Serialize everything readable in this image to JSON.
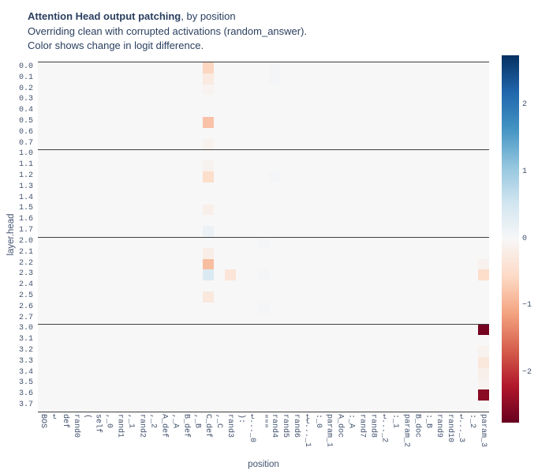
{
  "header": {
    "title_bold": "Attention Head output patching",
    "title_rest": ", by position",
    "subtitle1": "Overriding clean with corrupted activations (random_answer).",
    "subtitle2": "Color shows change in logit difference."
  },
  "chart_data": {
    "type": "heatmap",
    "title": "Attention Head output patching, by position",
    "xlabel": "position",
    "ylabel": "layer.head",
    "x_categories": [
      "BOS",
      "↵",
      "def",
      "rand0",
      "(",
      "self",
      ",_0",
      "rand1",
      ",_1",
      "rand2",
      ",_2",
      "A_def",
      ",_A",
      "B_def",
      ",_B",
      "C_def",
      ",_C",
      "rand3",
      "):",
      "↵..._0",
      "\"\"\"",
      "rand4",
      "rand5",
      "rand6",
      "↵↵..._1",
      ":_0",
      "param_1",
      "A_doc",
      ":_A",
      "rand7",
      "rand8",
      "↵..._2",
      ":_1",
      "param_2",
      "B_doc",
      ":_B",
      "rand9",
      "rand10",
      "↵..._3",
      ":_2",
      "param_3"
    ],
    "y_categories": [
      "0.0",
      "0.1",
      "0.2",
      "0.3",
      "0.4",
      "0.5",
      "0.6",
      "0.7",
      "1.0",
      "1.1",
      "1.2",
      "1.3",
      "1.4",
      "1.5",
      "1.6",
      "1.7",
      "2.0",
      "2.1",
      "2.2",
      "2.3",
      "2.4",
      "2.5",
      "2.6",
      "2.7",
      "3.0",
      "3.1",
      "3.2",
      "3.3",
      "3.4",
      "3.5",
      "3.6",
      "3.7"
    ],
    "colorscale": {
      "name": "RdBu",
      "zero_color_hex": "#f7f7f7",
      "positive_end_hex": "#053061",
      "negative_end_hex": "#67001f",
      "range": [
        -2.75,
        2.75
      ],
      "ticks": [
        {
          "label": "2",
          "value": 2
        },
        {
          "label": "1",
          "value": 1
        },
        {
          "label": "0",
          "value": 0
        },
        {
          "label": "−1",
          "value": -1
        },
        {
          "label": "−2",
          "value": -2
        }
      ]
    },
    "default_value": 0,
    "cells": [
      {
        "y": "0.0",
        "x": "C_def",
        "v": -0.6
      },
      {
        "y": "0.1",
        "x": "C_def",
        "v": -0.25
      },
      {
        "y": "0.2",
        "x": "C_def",
        "v": -0.08
      },
      {
        "y": "0.5",
        "x": "C_def",
        "v": -0.8
      },
      {
        "y": "0.7",
        "x": "C_def",
        "v": -0.1
      },
      {
        "y": "1.1",
        "x": "C_def",
        "v": -0.1
      },
      {
        "y": "1.2",
        "x": "C_def",
        "v": -0.5
      },
      {
        "y": "1.5",
        "x": "C_def",
        "v": -0.15
      },
      {
        "y": "1.7",
        "x": "C_def",
        "v": 0.18
      },
      {
        "y": "2.1",
        "x": "C_def",
        "v": -0.18
      },
      {
        "y": "2.2",
        "x": "C_def",
        "v": -0.85
      },
      {
        "y": "2.3",
        "x": "C_def",
        "v": 0.4
      },
      {
        "y": "2.5",
        "x": "C_def",
        "v": -0.3
      },
      {
        "y": "2.3",
        "x": "rand3",
        "v": -0.35
      },
      {
        "y": "0.0",
        "x": "rand4",
        "v": 0.06
      },
      {
        "y": "0.1",
        "x": "rand4",
        "v": 0.05
      },
      {
        "y": "1.2",
        "x": "rand4",
        "v": 0.05
      },
      {
        "y": "2.0",
        "x": "\"\"\"",
        "v": 0.05
      },
      {
        "y": "2.3",
        "x": "\"\"\"",
        "v": 0.06
      },
      {
        "y": "2.6",
        "x": "\"\"\"",
        "v": 0.05
      },
      {
        "y": "2.2",
        "x": "param_3",
        "v": -0.12
      },
      {
        "y": "2.3",
        "x": "param_3",
        "v": -0.5
      },
      {
        "y": "3.0",
        "x": "param_3",
        "v": -2.65
      },
      {
        "y": "3.2",
        "x": "param_3",
        "v": -0.1
      },
      {
        "y": "3.3",
        "x": "param_3",
        "v": -0.3
      },
      {
        "y": "3.4",
        "x": "param_3",
        "v": -0.15
      },
      {
        "y": "3.5",
        "x": "param_3",
        "v": -0.08
      },
      {
        "y": "3.6",
        "x": "param_3",
        "v": -2.5
      }
    ],
    "layer_separators_after_rows": [
      "0.7",
      "1.7",
      "2.7"
    ],
    "grid": false,
    "legend_position": "right-colorbar"
  },
  "colors": {
    "title_text": "#2a3f5f",
    "tick_text": "#42526e",
    "separator": "#3f3f3f",
    "background": "#ffffff"
  }
}
